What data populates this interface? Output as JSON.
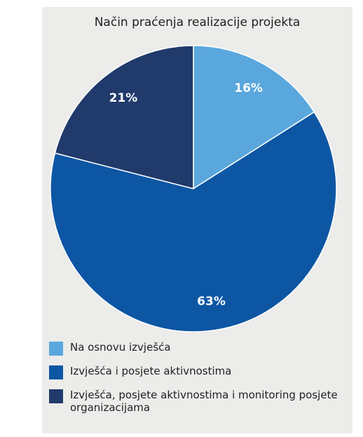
{
  "chart_data": {
    "type": "pie",
    "title": "Način praćenja realizacije projekta",
    "categories": [
      "Na osnovu izvješća",
      "Izvješća i posjete aktivnostima",
      "Izvješća, posjete aktivnostima i monitoring posjete organizacijama"
    ],
    "values": [
      16,
      63,
      21
    ],
    "value_labels": [
      "16%",
      "63%",
      "21%"
    ],
    "colors": [
      "#5aa7dd",
      "#0d56a4",
      "#203a6b"
    ],
    "start_angle_deg": 0,
    "direction": "clockwise",
    "legend": "bottom"
  }
}
